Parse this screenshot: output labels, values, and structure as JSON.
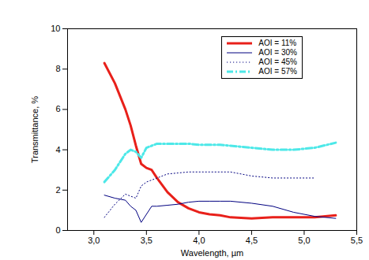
{
  "chart_data": {
    "type": "line",
    "x_label": "Wavelength, µm",
    "y_label": "Transmittance, %",
    "x": [
      3.1,
      3.2,
      3.3,
      3.35,
      3.4,
      3.45,
      3.5,
      3.55,
      3.6,
      3.7,
      3.8,
      3.9,
      4.0,
      4.1,
      4.2,
      4.3,
      4.5,
      4.7,
      4.9,
      5.1,
      5.3
    ],
    "series": [
      {
        "name": "AOI = 11%",
        "color": "#e8201a",
        "line_style": "solid",
        "values": [
          8.3,
          7.3,
          6.0,
          5.2,
          4.2,
          3.3,
          3.1,
          3.0,
          2.6,
          1.9,
          1.4,
          1.1,
          0.9,
          0.8,
          0.75,
          0.65,
          0.6,
          0.65,
          0.65,
          0.65,
          0.75
        ]
      },
      {
        "name": "AOI = 30%",
        "color": "#000080",
        "line_style": "solid",
        "values": [
          1.75,
          1.6,
          1.5,
          1.2,
          1.0,
          0.4,
          0.8,
          1.2,
          1.2,
          1.25,
          1.3,
          1.4,
          1.45,
          1.45,
          1.45,
          1.45,
          1.35,
          1.2,
          0.9,
          0.7,
          0.6
        ]
      },
      {
        "name": "AOI = 45%",
        "color": "#000080",
        "line_style": "dotted",
        "values": [
          0.65,
          1.3,
          1.8,
          1.7,
          1.6,
          2.2,
          2.4,
          2.5,
          2.6,
          2.8,
          2.85,
          2.9,
          2.9,
          2.9,
          2.9,
          2.9,
          2.7,
          2.6,
          2.6,
          2.6,
          null
        ]
      },
      {
        "name": "AOI = 57%",
        "color": "#4de8e8",
        "line_style": "dashdot",
        "values": [
          2.4,
          3.0,
          3.8,
          4.0,
          3.9,
          3.6,
          4.1,
          4.2,
          4.3,
          4.3,
          4.3,
          4.3,
          4.25,
          4.25,
          4.25,
          4.2,
          4.1,
          4.0,
          4.0,
          4.1,
          4.35
        ]
      }
    ],
    "xlim": [
      2.75,
      5.5
    ],
    "xticks": [
      {
        "value": 3.0,
        "label": "3,0"
      },
      {
        "value": 3.5,
        "label": "3,5"
      },
      {
        "value": 4.0,
        "label": "4,0"
      },
      {
        "value": 4.5,
        "label": "4,5"
      },
      {
        "value": 5.0,
        "label": "5,0"
      },
      {
        "value": 5.5,
        "label": "5,5"
      }
    ],
    "ylim": [
      0,
      10
    ],
    "yticks": [
      0,
      2,
      4,
      6,
      8,
      10
    ],
    "legend": "top-right",
    "grid": false
  }
}
